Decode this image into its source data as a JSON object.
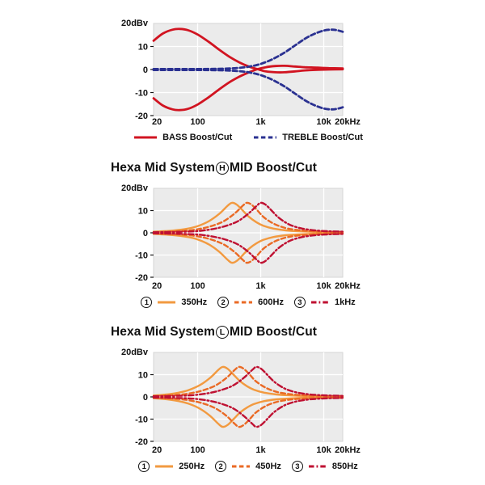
{
  "page": {
    "background": "#ffffff",
    "text_color": "#111111"
  },
  "style": {
    "plot_bg": "#ebebeb",
    "plot_border": "#d6d6d6",
    "grid_color": "#ffffff",
    "tick_color": "#111111"
  },
  "chart_data": [
    {
      "name": "tone-control",
      "type": "line",
      "x_scale": "log",
      "x_range_hz": [
        20,
        20000
      ],
      "y_range_db": [
        -20,
        20
      ],
      "y_axis_top_label": "20dBv",
      "yticks": [
        10,
        0,
        -10,
        -20
      ],
      "xticks": [
        {
          "label": "20",
          "f": 20
        },
        {
          "label": "100",
          "f": 100
        },
        {
          "label": "1k",
          "f": 1000
        },
        {
          "label": "10k",
          "f": 10000
        },
        {
          "label": "20kHz",
          "f": 20000
        }
      ],
      "grid": true,
      "legend_position": "bottom",
      "stroke_width": 2.8,
      "series": [
        {
          "name": "BASS Boost/Cut",
          "legend": "BASS Boost/Cut",
          "color": "#d11421",
          "style": "solid",
          "points_boost": [
            [
              20,
              12.5
            ],
            [
              28,
              15.6
            ],
            [
              40,
              17.3
            ],
            [
              52,
              17.6
            ],
            [
              70,
              17.1
            ],
            [
              100,
              15.2
            ],
            [
              150,
              12.0
            ],
            [
              220,
              8.6
            ],
            [
              320,
              5.5
            ],
            [
              460,
              3.1
            ],
            [
              650,
              1.3
            ],
            [
              900,
              0.1
            ],
            [
              1200,
              -0.8
            ],
            [
              1700,
              -1.2
            ],
            [
              2400,
              -1.2
            ],
            [
              3500,
              -0.8
            ],
            [
              5000,
              -0.4
            ],
            [
              8000,
              -0.1
            ],
            [
              12000,
              0.0
            ],
            [
              20000,
              0.1
            ]
          ],
          "points_cut": [
            [
              20,
              -12.5
            ],
            [
              28,
              -15.6
            ],
            [
              40,
              -17.3
            ],
            [
              52,
              -17.6
            ],
            [
              70,
              -17.1
            ],
            [
              100,
              -15.2
            ],
            [
              150,
              -12.0
            ],
            [
              220,
              -8.6
            ],
            [
              320,
              -5.5
            ],
            [
              460,
              -3.1
            ],
            [
              650,
              -1.2
            ],
            [
              900,
              0.2
            ],
            [
              1200,
              1.0
            ],
            [
              1700,
              1.5
            ],
            [
              2400,
              1.6
            ],
            [
              3500,
              1.3
            ],
            [
              5000,
              1.0
            ],
            [
              8000,
              0.8
            ],
            [
              12000,
              0.6
            ],
            [
              20000,
              0.5
            ]
          ]
        },
        {
          "name": "TREBLE Boost/Cut",
          "legend": "TREBLE Boost/Cut",
          "color": "#2a3191",
          "style": "dashed",
          "mirror": true,
          "points_boost": [
            [
              20,
              0.2
            ],
            [
              60,
              0.2
            ],
            [
              150,
              0.25
            ],
            [
              250,
              0.35
            ],
            [
              400,
              0.6
            ],
            [
              600,
              1.1
            ],
            [
              850,
              1.9
            ],
            [
              1200,
              3.2
            ],
            [
              1700,
              5.1
            ],
            [
              2400,
              7.4
            ],
            [
              3400,
              10.2
            ],
            [
              5000,
              13.3
            ],
            [
              7000,
              15.4
            ],
            [
              10000,
              16.9
            ],
            [
              13000,
              17.3
            ],
            [
              16000,
              17.1
            ],
            [
              20000,
              16.4
            ]
          ]
        }
      ]
    },
    {
      "name": "hexa-mid-system-h",
      "title_prefix": "Hexa Mid System",
      "title_circle": "H",
      "title_suffix": "MID Boost/Cut",
      "type": "line",
      "x_scale": "log",
      "x_range_hz": [
        20,
        20000
      ],
      "y_range_db": [
        -20,
        20
      ],
      "y_axis_top_label": "20dBv",
      "yticks": [
        10,
        0,
        -10,
        -20
      ],
      "xticks": [
        {
          "label": "20",
          "f": 20
        },
        {
          "label": "100",
          "f": 100
        },
        {
          "label": "1k",
          "f": 1000
        },
        {
          "label": "10k",
          "f": 10000
        },
        {
          "label": "20kHz",
          "f": 20000
        }
      ],
      "grid": true,
      "legend_position": "bottom",
      "stroke_width": 2.4,
      "series": [
        {
          "name": "350Hz Boost/Cut",
          "num": "1",
          "legend": "350Hz",
          "color": "#f29a40",
          "style": "solid",
          "mirror": true,
          "points_boost": [
            [
              20,
              0.5
            ],
            [
              40,
              1.0
            ],
            [
              70,
              1.9
            ],
            [
              100,
              3.0
            ],
            [
              150,
              5.2
            ],
            [
              220,
              8.5
            ],
            [
              300,
              12.2
            ],
            [
              350,
              13.5
            ],
            [
              420,
              12.6
            ],
            [
              520,
              10.0
            ],
            [
              650,
              7.2
            ],
            [
              850,
              4.8
            ],
            [
              1100,
              3.2
            ],
            [
              1600,
              1.9
            ],
            [
              2500,
              1.1
            ],
            [
              4000,
              0.7
            ],
            [
              8000,
              0.4
            ],
            [
              20000,
              0.3
            ]
          ]
        },
        {
          "name": "600Hz Boost/Cut",
          "num": "2",
          "legend": "600Hz",
          "color": "#ea6a25",
          "style": "dashed",
          "mirror": true,
          "points_boost": [
            [
              20,
              0.3
            ],
            [
              50,
              0.7
            ],
            [
              90,
              1.4
            ],
            [
              150,
              2.7
            ],
            [
              250,
              5.0
            ],
            [
              380,
              8.5
            ],
            [
              520,
              12.2
            ],
            [
              600,
              13.5
            ],
            [
              720,
              12.6
            ],
            [
              890,
              10.0
            ],
            [
              1100,
              7.2
            ],
            [
              1450,
              4.8
            ],
            [
              1900,
              3.2
            ],
            [
              2700,
              1.9
            ],
            [
              4300,
              1.1
            ],
            [
              7000,
              0.7
            ],
            [
              13000,
              0.45
            ],
            [
              20000,
              0.4
            ]
          ]
        },
        {
          "name": "1kHz Boost/Cut",
          "num": "3",
          "legend": "1kHz",
          "color": "#bf1132",
          "style": "dashdot",
          "mirror": true,
          "points_boost": [
            [
              20,
              0.25
            ],
            [
              80,
              0.6
            ],
            [
              150,
              1.4
            ],
            [
              250,
              2.7
            ],
            [
              420,
              5.0
            ],
            [
              630,
              8.5
            ],
            [
              870,
              12.2
            ],
            [
              1000,
              13.5
            ],
            [
              1200,
              12.6
            ],
            [
              1490,
              10.0
            ],
            [
              1860,
              7.2
            ],
            [
              2430,
              4.8
            ],
            [
              3140,
              3.2
            ],
            [
              4570,
              1.9
            ],
            [
              7150,
              1.1
            ],
            [
              12000,
              0.7
            ],
            [
              20000,
              0.5
            ]
          ]
        }
      ]
    },
    {
      "name": "hexa-mid-system-l",
      "title_prefix": "Hexa Mid System",
      "title_circle": "L",
      "title_suffix": "MID Boost/Cut",
      "type": "line",
      "x_scale": "log",
      "x_range_hz": [
        20,
        20000
      ],
      "y_range_db": [
        -20,
        20
      ],
      "y_axis_top_label": "20dBv",
      "yticks": [
        10,
        0,
        -10,
        -20
      ],
      "xticks": [
        {
          "label": "20",
          "f": 20
        },
        {
          "label": "100",
          "f": 100
        },
        {
          "label": "1k",
          "f": 1000
        },
        {
          "label": "10k",
          "f": 10000
        },
        {
          "label": "20kHz",
          "f": 20000
        }
      ],
      "grid": true,
      "legend_position": "bottom",
      "stroke_width": 2.4,
      "series": [
        {
          "name": "250Hz Boost/Cut",
          "num": "1",
          "legend": "250Hz",
          "color": "#f29a40",
          "style": "solid",
          "mirror": true,
          "points_boost": [
            [
              20,
              0.6
            ],
            [
              35,
              1.2
            ],
            [
              50,
              1.9
            ],
            [
              71,
              3.0
            ],
            [
              107,
              5.2
            ],
            [
              157,
              8.5
            ],
            [
              214,
              12.2
            ],
            [
              250,
              13.5
            ],
            [
              300,
              12.6
            ],
            [
              371,
              10.0
            ],
            [
              464,
              7.2
            ],
            [
              607,
              4.8
            ],
            [
              786,
              3.2
            ],
            [
              1143,
              1.9
            ],
            [
              1786,
              1.1
            ],
            [
              2857,
              0.7
            ],
            [
              5700,
              0.4
            ],
            [
              20000,
              0.25
            ]
          ]
        },
        {
          "name": "450Hz Boost/Cut",
          "num": "2",
          "legend": "450Hz",
          "color": "#ea6a25",
          "style": "dashed",
          "mirror": true,
          "points_boost": [
            [
              20,
              0.35
            ],
            [
              38,
              0.7
            ],
            [
              68,
              1.4
            ],
            [
              113,
              2.7
            ],
            [
              188,
              5.0
            ],
            [
              285,
              8.5
            ],
            [
              390,
              12.2
            ],
            [
              450,
              13.5
            ],
            [
              540,
              12.6
            ],
            [
              670,
              10.0
            ],
            [
              825,
              7.2
            ],
            [
              1090,
              4.8
            ],
            [
              1425,
              3.2
            ],
            [
              2025,
              1.9
            ],
            [
              3225,
              1.1
            ],
            [
              5250,
              0.7
            ],
            [
              9750,
              0.45
            ],
            [
              20000,
              0.35
            ]
          ]
        },
        {
          "name": "850Hz Boost/Cut",
          "num": "3",
          "legend": "850Hz",
          "color": "#bf1132",
          "style": "dashdot",
          "mirror": true,
          "points_boost": [
            [
              20,
              0.3
            ],
            [
              68,
              0.6
            ],
            [
              128,
              1.4
            ],
            [
              213,
              2.7
            ],
            [
              357,
              5.0
            ],
            [
              536,
              8.5
            ],
            [
              740,
              12.2
            ],
            [
              850,
              13.5
            ],
            [
              1020,
              12.6
            ],
            [
              1267,
              10.0
            ],
            [
              1581,
              7.2
            ],
            [
              2066,
              4.8
            ],
            [
              2669,
              3.2
            ],
            [
              3885,
              1.9
            ],
            [
              6078,
              1.1
            ],
            [
              10200,
              0.7
            ],
            [
              17000,
              0.5
            ],
            [
              20000,
              0.45
            ]
          ]
        }
      ]
    }
  ]
}
